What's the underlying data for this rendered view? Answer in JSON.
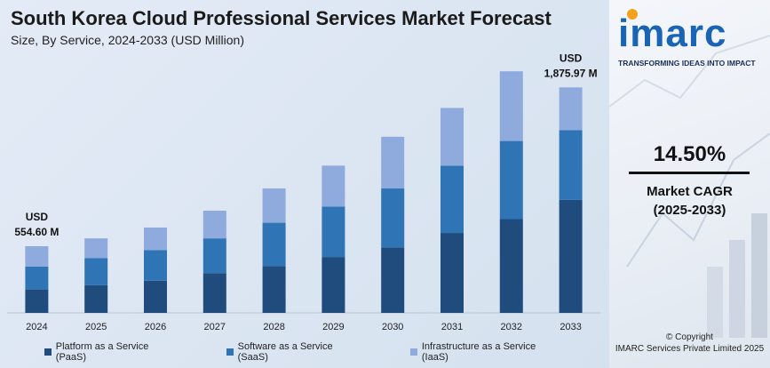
{
  "header": {
    "title": "South Korea Cloud Professional Services Market Forecast",
    "subtitle": "Size, By Service, 2024-2033 (USD Million)"
  },
  "chart_data": {
    "type": "bar",
    "stacked": true,
    "title": "South Korea Cloud Professional Services Market Forecast",
    "subtitle": "Size, By Service, 2024-2033 (USD Million)",
    "categories": [
      "2024",
      "2025",
      "2026",
      "2027",
      "2028",
      "2029",
      "2030",
      "2031",
      "2032",
      "2033"
    ],
    "series": [
      {
        "name": "Platform as a Service (PaaS)",
        "color": "#1f4b7d",
        "values": [
          195,
          230,
          268,
          330,
          390,
          465,
          545,
          665,
          780,
          940
        ]
      },
      {
        "name": "Software as a Service (SaaS)",
        "color": "#2f75b6",
        "values": [
          190,
          225,
          255,
          290,
          360,
          420,
          490,
          560,
          650,
          580
        ]
      },
      {
        "name": "Infrastructure as a Service (IaaS)",
        "color": "#8faadc",
        "values": [
          169.6,
          165,
          187,
          230,
          285,
          340,
          430,
          480,
          580,
          355.97
        ]
      }
    ],
    "totals_labels": [
      {
        "category": "2024",
        "lines": [
          "USD",
          "554.60 M"
        ]
      },
      {
        "category": "2033",
        "lines": [
          "USD",
          "1,875.97 M"
        ]
      }
    ],
    "ylim": [
      0,
      2100
    ],
    "grid": false,
    "legend_position": "bottom"
  },
  "legend": {
    "items": [
      {
        "label": "Platform as a Service (PaaS)",
        "color": "#1f4b7d"
      },
      {
        "label": "Software as a Service (SaaS)",
        "color": "#2f75b6"
      },
      {
        "label": "Infrastructure as a Service (IaaS)",
        "color": "#8faadc"
      }
    ]
  },
  "sidebar": {
    "logo_text": "imarc",
    "tagline": "TRANSFORMING IDEAS INTO IMPACT",
    "cagr_value": "14.50%",
    "cagr_label": "Market CAGR",
    "cagr_period": "(2025-2033)",
    "copyright_line1": "© Copyright",
    "copyright_line2": "IMARC Services Private Limited 2025"
  },
  "colors": {
    "logo": "#1a64b5",
    "logo_dot": "#f4a21b"
  }
}
